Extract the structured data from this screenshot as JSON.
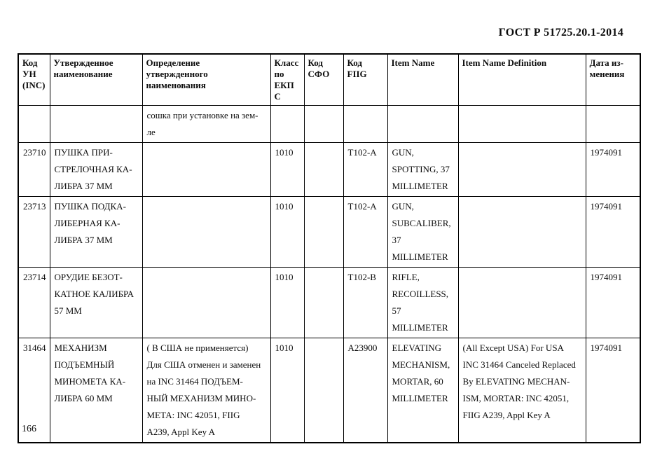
{
  "page": {
    "standard_number": "ГОСТ Р 51725.20.1-2014",
    "page_number": "166"
  },
  "table": {
    "columns": [
      {
        "id": "inc-code",
        "label": "Код\nУН\n(INC)"
      },
      {
        "id": "approved-name",
        "label": "Утвержденное\nнаименование"
      },
      {
        "id": "approved-name-definition",
        "label": "Определение\nутвержденного\nнаименования"
      },
      {
        "id": "ekps-class",
        "label": "Класс\nпо\nЕКП\nС"
      },
      {
        "id": "sfo-code",
        "label": "Код\nСФО"
      },
      {
        "id": "fiig-code",
        "label": "Код\nFIIG"
      },
      {
        "id": "item-name",
        "label": "Item Name"
      },
      {
        "id": "item-name-definition",
        "label": "Item Name Definition"
      },
      {
        "id": "change-date",
        "label": "Дата из-\nменения"
      }
    ],
    "rows": [
      {
        "cells": [
          "",
          "",
          "сошка при установке на зем-\nле",
          "",
          "",
          "",
          "",
          "",
          ""
        ]
      },
      {
        "cells": [
          "23710",
          "ПУШКА ПРИ-\nСТРЕЛОЧНАЯ КА-\nЛИБРА 37 ММ",
          "",
          "1010",
          "",
          "T102-A",
          "GUN,\nSPOTTING, 37\nMILLIMETER",
          "",
          "1974091"
        ]
      },
      {
        "cells": [
          "23713",
          "ПУШКА ПОДКА-\nЛИБЕРНАЯ КА-\nЛИБРА 37 ММ",
          "",
          "1010",
          "",
          "T102-A",
          "GUN,\nSUBCALIBER,\n37\nMILLIMETER",
          "",
          "1974091"
        ]
      },
      {
        "cells": [
          "23714",
          "ОРУДИЕ БЕЗОТ-\nКАТНОЕ КАЛИБРА\n57 ММ",
          "",
          "1010",
          "",
          "T102-B",
          "RIFLE,\nRECOILLESS,\n57\nMILLIMETER",
          "",
          "1974091"
        ]
      },
      {
        "cells": [
          "31464",
          "МЕХАНИЗМ\nПОДЪЕМНЫЙ\nМИНОМЕТА КА-\nЛИБРА 60 ММ",
          "( В США не применяется)\nДля США отменен и заменен\nна INC 31464 ПОДЪЕМ-\nНЫЙ МЕХАНИЗМ МИНО-\nМЕТА: INC 42051, FIIG\nA239, Appl Key A",
          "1010",
          "",
          "A23900",
          "ELEVATING\nMECHANISM,\nMORTAR, 60\nMILLIMETER",
          "(All Except USA) For USA\nINC 31464 Canceled Replaced\nBy ELEVATING MECHAN-\nISM, MORTAR: INC 42051,\nFIIG A239, Appl Key A",
          "1974091"
        ]
      }
    ]
  }
}
